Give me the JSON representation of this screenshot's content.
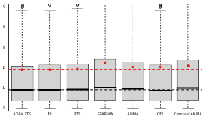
{
  "chart_data": {
    "type": "boxplot",
    "categories": [
      "ADAM ETS",
      "ES",
      "ETS",
      "SSARIMA",
      "ARIMA",
      "CES",
      "CompositARIMA"
    ],
    "whisker_low": [
      0.0,
      0.0,
      0.0,
      0.0,
      0.0,
      0.0,
      0.0
    ],
    "q1": [
      0.35,
      0.35,
      0.38,
      0.38,
      0.38,
      0.35,
      0.38
    ],
    "median": [
      0.92,
      0.92,
      0.93,
      1.02,
      0.97,
      0.88,
      1.0
    ],
    "q3": [
      2.1,
      2.15,
      2.2,
      2.45,
      2.3,
      2.15,
      2.4
    ],
    "whisker_high": [
      4.85,
      4.85,
      4.95,
      5.2,
      5.2,
      4.85,
      5.2
    ],
    "outliers": [
      [
        5.0,
        5.05,
        5.1,
        5.15
      ],
      [
        5.1,
        5.15
      ],
      [
        5.1,
        5.15
      ],
      [],
      [],
      [
        5.0,
        5.05,
        5.1,
        5.15
      ],
      []
    ],
    "color": "#d3d3d3",
    "means": {
      "values": [
        1.92,
        1.92,
        1.95,
        2.25,
        2.05,
        2.05,
        2.1
      ],
      "color": "#e41a1c",
      "marker": "circle"
    },
    "reference_lines": [
      {
        "value": 1.92,
        "color": "#e41a1c",
        "line_style": "dashed"
      },
      {
        "value": 0.92,
        "color": "#000000",
        "line_style": "dashed"
      }
    ],
    "ylim": [
      -0.1,
      5.15
    ],
    "yticks": [
      0,
      1,
      2,
      3,
      4,
      5
    ],
    "grid": false
  }
}
